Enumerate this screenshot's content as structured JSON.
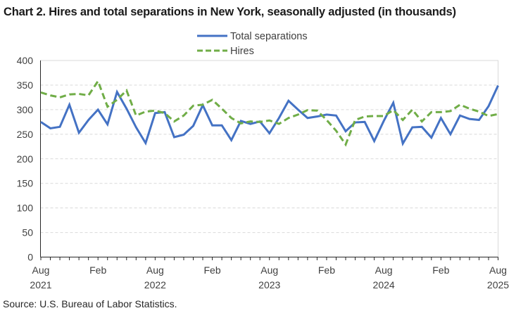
{
  "title": "Chart 2. Hires and total separations in New York, seasonally adjusted (in thousands)",
  "source": "Source: U.S. Bureau of Labor Statistics.",
  "colors": {
    "separations_line": "#4472C4",
    "hires_line": "#70AD47",
    "gridline": "#D9D9D9",
    "plot_border": "#D9D9D9",
    "axis": "#262626",
    "tick_text": "#404040"
  },
  "chart_data": {
    "type": "line",
    "title": "Chart 2. Hires and total separations in New York, seasonally adjusted (in thousands)",
    "xlabel": "",
    "ylabel": "",
    "ylim": [
      0,
      400
    ],
    "y_ticks": [
      0,
      50,
      100,
      150,
      200,
      250,
      300,
      350,
      400
    ],
    "grid": "horizontal-dashed",
    "legend_position": "top-center",
    "n_points": 49,
    "x_range_label": "Aug 2021 to Aug 2025, monthly",
    "x_tick_labels": [
      {
        "index": 0,
        "month": "Aug",
        "year": "2021"
      },
      {
        "index": 6,
        "month": "Feb",
        "year": ""
      },
      {
        "index": 12,
        "month": "Aug",
        "year": "2022"
      },
      {
        "index": 18,
        "month": "Feb",
        "year": ""
      },
      {
        "index": 24,
        "month": "Aug",
        "year": "2023"
      },
      {
        "index": 30,
        "month": "Feb",
        "year": ""
      },
      {
        "index": 36,
        "month": "Aug",
        "year": "2024"
      },
      {
        "index": 42,
        "month": "Feb",
        "year": ""
      },
      {
        "index": 48,
        "month": "Aug",
        "year": "2025"
      }
    ],
    "series": [
      {
        "name": "Total separations",
        "color": "#4472C4",
        "style": "solid",
        "values": [
          275,
          262,
          265,
          310,
          253,
          279,
          300,
          270,
          336,
          302,
          264,
          232,
          293,
          295,
          244,
          249,
          267,
          309,
          268,
          268,
          238,
          277,
          271,
          276,
          252,
          283,
          318,
          300,
          283,
          286,
          290,
          288,
          256,
          274,
          275,
          236,
          277,
          314,
          231,
          264,
          265,
          243,
          283,
          250,
          288,
          281,
          279,
          307,
          349
        ]
      },
      {
        "name": "Hires",
        "color": "#70AD47",
        "style": "dashed",
        "values": [
          335,
          329,
          325,
          331,
          332,
          329,
          358,
          306,
          320,
          339,
          288,
          296,
          298,
          293,
          276,
          288,
          308,
          310,
          320,
          302,
          283,
          272,
          276,
          275,
          278,
          271,
          283,
          290,
          299,
          298,
          279,
          257,
          229,
          279,
          286,
          287,
          287,
          299,
          279,
          300,
          276,
          295,
          295,
          297,
          310,
          302,
          296,
          287,
          291
        ]
      }
    ]
  }
}
